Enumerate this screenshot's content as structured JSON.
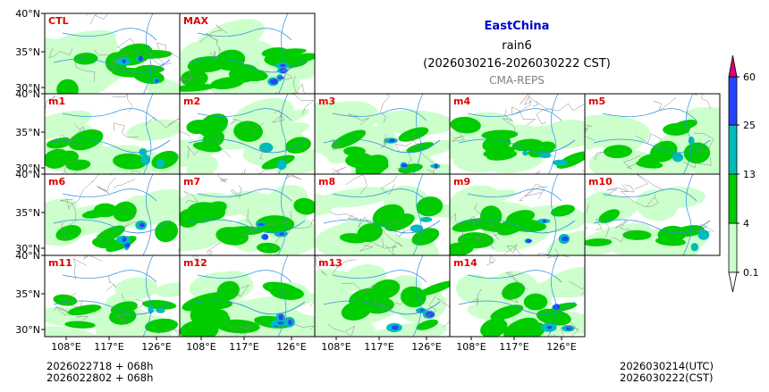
{
  "header": {
    "region": "EastChina",
    "variable": "rain6",
    "period": "(2026030216-2026030222 CST)",
    "source": "CMA-REPS"
  },
  "axes": {
    "y_labels": [
      "40°N",
      "35°N",
      "30°N"
    ],
    "x_labels": [
      "108°E",
      "117°E",
      "126°E"
    ]
  },
  "footer": {
    "init_utc": "2026022718  +  068h",
    "init_cst": "2026022802  +  068h",
    "valid_utc": "2026030214(UTC)",
    "valid_cst": "2026030222(CST)"
  },
  "colorbar": {
    "levels": [
      "0.1",
      "4",
      "13",
      "25",
      "60"
    ],
    "colors": [
      "#ccffcc",
      "#00cc00",
      "#00bbbb",
      "#2244ff",
      "#dd0077"
    ]
  },
  "panels": [
    {
      "label": "CTL",
      "intensity": 0.55
    },
    {
      "label": "MAX",
      "intensity": 1.0
    },
    {
      "label": "m1",
      "intensity": 0.5
    },
    {
      "label": "m2",
      "intensity": 0.45
    },
    {
      "label": "m3",
      "intensity": 0.55
    },
    {
      "label": "m4",
      "intensity": 0.5
    },
    {
      "label": "m5",
      "intensity": 0.45
    },
    {
      "label": "m6",
      "intensity": 0.6
    },
    {
      "label": "m7",
      "intensity": 0.6
    },
    {
      "label": "m8",
      "intensity": 0.35
    },
    {
      "label": "m9",
      "intensity": 0.65
    },
    {
      "label": "m10",
      "intensity": 0.3
    },
    {
      "label": "m11",
      "intensity": 0.45
    },
    {
      "label": "m12",
      "intensity": 0.85
    },
    {
      "label": "m13",
      "intensity": 0.7
    },
    {
      "label": "m14",
      "intensity": 0.55
    }
  ]
}
